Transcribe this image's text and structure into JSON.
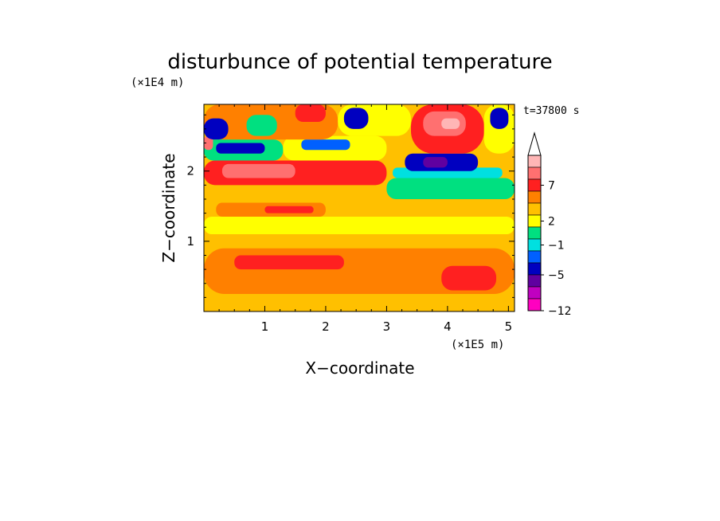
{
  "chart_data": {
    "type": "heatmap",
    "title": "disturbunce of potential temperature",
    "time_label": "t=37800 s",
    "xlabel": "X−coordinate",
    "ylabel": "Z−coordinate",
    "x_unit": "(×1E5 m)",
    "y_unit": "(×1E4 m)",
    "xlim": [
      0,
      5.1
    ],
    "ylim": [
      0,
      2.95
    ],
    "x_ticks": [
      1,
      2,
      3,
      4,
      5
    ],
    "y_ticks": [
      1,
      2
    ],
    "grid": false,
    "legend": "right colorbar",
    "colorbar": {
      "labels": [
        "7",
        "2",
        "−1",
        "−5",
        "−12"
      ],
      "colors_top_to_bottom": [
        "#ffb6b6",
        "#ff7070",
        "#ff2020",
        "#ff8000",
        "#ffc000",
        "#ffff00",
        "#00e080",
        "#00e0e0",
        "#0060ff",
        "#0000c0",
        "#6000a0",
        "#c000c0",
        "#ff00c0"
      ],
      "extend_top": true
    },
    "regions": [
      {
        "x0": 0.0,
        "x1": 5.1,
        "z0": 0.0,
        "z1": 0.25,
        "level": 3
      },
      {
        "x0": 0.0,
        "x1": 5.1,
        "z0": 0.25,
        "z1": 0.9,
        "level": 4
      },
      {
        "x0": 0.5,
        "x1": 2.3,
        "z0": 0.6,
        "z1": 0.8,
        "level": 5
      },
      {
        "x0": 3.9,
        "x1": 4.8,
        "z0": 0.3,
        "z1": 0.65,
        "level": 5
      },
      {
        "x0": 0.0,
        "x1": 5.1,
        "z0": 0.9,
        "z1": 1.1,
        "level": 3
      },
      {
        "x0": 0.0,
        "x1": 5.1,
        "z0": 1.1,
        "z1": 1.35,
        "level": 2
      },
      {
        "x0": 0.2,
        "x1": 2.0,
        "z0": 1.35,
        "z1": 1.55,
        "level": 4
      },
      {
        "x0": 1.0,
        "x1": 1.8,
        "z0": 1.4,
        "z1": 1.5,
        "level": 5
      },
      {
        "x0": 2.0,
        "x1": 5.1,
        "z0": 1.35,
        "z1": 1.6,
        "level": 3
      },
      {
        "x0": 0.0,
        "x1": 3.0,
        "z0": 1.55,
        "z1": 1.8,
        "level": 3
      },
      {
        "x0": 0.0,
        "x1": 3.0,
        "z0": 1.8,
        "z1": 2.15,
        "level": 5
      },
      {
        "x0": 0.3,
        "x1": 1.5,
        "z0": 1.9,
        "z1": 2.1,
        "level": 6
      },
      {
        "x0": 3.0,
        "x1": 5.1,
        "z0": 1.6,
        "z1": 1.9,
        "level": 1
      },
      {
        "x0": 3.1,
        "x1": 4.9,
        "z0": 1.9,
        "z1": 2.05,
        "level": 0
      },
      {
        "x0": 3.3,
        "x1": 4.5,
        "z0": 2.0,
        "z1": 2.25,
        "level": -2
      },
      {
        "x0": 3.6,
        "x1": 4.0,
        "z0": 2.05,
        "z1": 2.2,
        "level": -3
      },
      {
        "x0": 0.0,
        "x1": 1.3,
        "z0": 2.15,
        "z1": 2.45,
        "level": 1
      },
      {
        "x0": 0.2,
        "x1": 1.0,
        "z0": 2.25,
        "z1": 2.4,
        "level": -2
      },
      {
        "x0": 0.0,
        "x1": 0.15,
        "z0": 2.3,
        "z1": 2.5,
        "level": 6
      },
      {
        "x0": 1.3,
        "x1": 3.0,
        "z0": 2.15,
        "z1": 2.5,
        "level": 2
      },
      {
        "x0": 1.6,
        "x1": 2.4,
        "z0": 2.3,
        "z1": 2.45,
        "level": -1
      },
      {
        "x0": 0.0,
        "x1": 2.2,
        "z0": 2.45,
        "z1": 2.95,
        "level": 4
      },
      {
        "x0": 0.0,
        "x1": 0.4,
        "z0": 2.45,
        "z1": 2.75,
        "level": -2
      },
      {
        "x0": 0.7,
        "x1": 1.2,
        "z0": 2.5,
        "z1": 2.8,
        "level": 1
      },
      {
        "x0": 1.5,
        "x1": 2.0,
        "z0": 2.7,
        "z1": 2.95,
        "level": 5
      },
      {
        "x0": 2.2,
        "x1": 3.4,
        "z0": 2.5,
        "z1": 2.95,
        "level": 2
      },
      {
        "x0": 2.3,
        "x1": 2.7,
        "z0": 2.6,
        "z1": 2.9,
        "level": -2
      },
      {
        "x0": 3.4,
        "x1": 4.6,
        "z0": 2.25,
        "z1": 2.95,
        "level": 5
      },
      {
        "x0": 3.6,
        "x1": 4.3,
        "z0": 2.5,
        "z1": 2.85,
        "level": 6
      },
      {
        "x0": 3.9,
        "x1": 4.2,
        "z0": 2.6,
        "z1": 2.75,
        "level": 7
      },
      {
        "x0": 4.6,
        "x1": 5.1,
        "z0": 2.25,
        "z1": 2.95,
        "level": 2
      },
      {
        "x0": 4.7,
        "x1": 5.0,
        "z0": 2.6,
        "z1": 2.9,
        "level": -2
      }
    ]
  }
}
